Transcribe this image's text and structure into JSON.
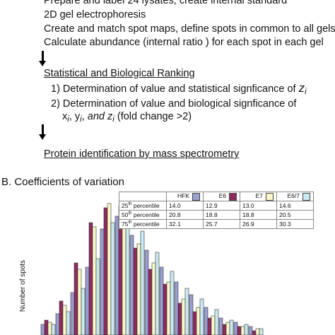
{
  "workflow": {
    "step1_lines": [
      "Prepare and label 24 lysates, create internal standard",
      "2D gel electrophoresis",
      "Create and match spot maps, define spots in common to all gels",
      "Calculate abundance (internal ratio ) for each spot in each gel"
    ],
    "stat_heading": "Statistical and Biological Ranking",
    "stat_item1": "1) Determination of value and statistical signficance of ",
    "stat_item1_var": "z",
    "stat_item1_sub": "i",
    "stat_item2_line1": "2) Determination of value and biological signficance of",
    "stat_item2_x": "x",
    "stat_item2_y": "y",
    "stat_item2_and": "and z",
    "stat_item2_sub": "i",
    "stat_item2_sep": ",",
    "stat_item2_tail": " (fold change >2)",
    "protein_heading": "Protein identification by mass spectrometry"
  },
  "section_b": {
    "title": "B. Coefficients of variation",
    "y_axis_label": "Number of spots"
  },
  "cv_table": {
    "columns": [
      {
        "label": "HFK",
        "color": "#9a9ed0"
      },
      {
        "label": "E6",
        "color": "#8e2b5c"
      },
      {
        "label": "E7",
        "color": "#fbf7c6"
      },
      {
        "label": "E6/7",
        "color": "#c9eaf1"
      }
    ],
    "rows": [
      {
        "pct": "25",
        "sup": "th",
        "label": " percentile",
        "values": [
          "14.0",
          "12.9",
          "13.0",
          "14.6"
        ]
      },
      {
        "pct": "50",
        "sup": "th",
        "label": " percentile",
        "values": [
          "20.8",
          "18.8",
          "18.8",
          "20.5"
        ]
      },
      {
        "pct": "75",
        "sup": "th",
        "label": " percentile",
        "values": [
          "32.1",
          "25.7",
          "26.9",
          "30.3"
        ]
      }
    ]
  },
  "chart_data": {
    "type": "bar",
    "ylabel": "Number of spots",
    "series_colors": [
      "#9a9ed0",
      "#8e2b5c",
      "#fbf7c6",
      "#c9eaf1"
    ],
    "series": [
      {
        "name": "HFK",
        "values": [
          5,
          10,
          20,
          32,
          50,
          56,
          47,
          40,
          32,
          25,
          19,
          13,
          8,
          6,
          4
        ]
      },
      {
        "name": "E6",
        "values": [
          7,
          16,
          34,
          53,
          60,
          61,
          41,
          31,
          24,
          15,
          11,
          8,
          5,
          4,
          2
        ]
      },
      {
        "name": "E7",
        "values": [
          6,
          14,
          31,
          51,
          62,
          62,
          43,
          34,
          25,
          17,
          13,
          9,
          6,
          4,
          3
        ]
      },
      {
        "name": "E6/7",
        "values": [
          5,
          11,
          22,
          36,
          53,
          57,
          49,
          39,
          30,
          22,
          17,
          12,
          7,
          5,
          3
        ]
      }
    ]
  }
}
